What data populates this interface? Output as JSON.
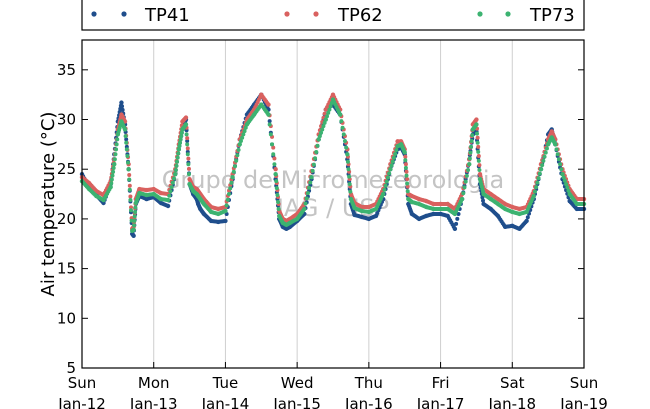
{
  "chart_data": {
    "type": "scatter",
    "ylabel": "Air temperature (°C)",
    "xlabel": "",
    "ylim": [
      5,
      38
    ],
    "xlim": [
      0,
      7
    ],
    "grid": "vertical",
    "legend_placement": "top, above plot",
    "yticks": [
      5,
      10,
      15,
      20,
      25,
      30,
      35
    ],
    "xticks": [
      {
        "x": 0,
        "day": "Sun",
        "date": "Jan-12"
      },
      {
        "x": 1,
        "day": "Mon",
        "date": "Jan-13"
      },
      {
        "x": 2,
        "day": "Tue",
        "date": "Jan-14"
      },
      {
        "x": 3,
        "day": "Wed",
        "date": "Jan-15"
      },
      {
        "x": 4,
        "day": "Thu",
        "date": "Jan-16"
      },
      {
        "x": 5,
        "day": "Fri",
        "date": "Jan-17"
      },
      {
        "x": 6,
        "day": "Sat",
        "date": "Jan-18"
      },
      {
        "x": 7,
        "day": "Sun",
        "date": "Jan-19"
      }
    ],
    "watermark": [
      "Grupo de Micrometeorologia",
      "IAG / USP"
    ],
    "x_units": "days since Jan-12 00:00",
    "series": [
      {
        "name": "TP41",
        "color": "#1f4e8c",
        "x": [
          0,
          0.1,
          0.2,
          0.3,
          0.4,
          0.45,
          0.5,
          0.55,
          0.6,
          0.65,
          0.7,
          0.72,
          0.75,
          0.8,
          0.9,
          1.0,
          1.1,
          1.2,
          1.3,
          1.35,
          1.4,
          1.45,
          1.5,
          1.55,
          1.6,
          1.62,
          1.65,
          1.7,
          1.8,
          1.9,
          2.0,
          2.1,
          2.2,
          2.3,
          2.4,
          2.5,
          2.6,
          2.7,
          2.75,
          2.8,
          2.85,
          2.9,
          3.0,
          3.1,
          3.2,
          3.3,
          3.4,
          3.5,
          3.6,
          3.7,
          3.75,
          3.8,
          3.9,
          4.0,
          4.1,
          4.2,
          4.3,
          4.4,
          4.45,
          4.5,
          4.55,
          4.6,
          4.7,
          4.8,
          4.9,
          5.0,
          5.1,
          5.2,
          5.3,
          5.4,
          5.45,
          5.5,
          5.55,
          5.6,
          5.7,
          5.8,
          5.9,
          6.0,
          6.1,
          6.2,
          6.3,
          6.4,
          6.5,
          6.55,
          6.6,
          6.7,
          6.8,
          6.9,
          7.0
        ],
        "y": [
          24.5,
          23.2,
          22.4,
          21.6,
          23.5,
          26.5,
          29.8,
          31.7,
          29.5,
          25.0,
          18.5,
          18.3,
          21.5,
          22.3,
          22.0,
          22.2,
          21.6,
          21.3,
          24.5,
          27.0,
          29.0,
          30.0,
          23.5,
          22.5,
          22.0,
          21.5,
          21.0,
          20.5,
          19.8,
          19.7,
          19.8,
          24.0,
          28.0,
          30.5,
          31.5,
          32.5,
          31.0,
          24.0,
          20.0,
          19.2,
          19.0,
          19.2,
          19.8,
          20.5,
          24.0,
          28.0,
          31.0,
          31.5,
          30.5,
          26.0,
          21.5,
          20.4,
          20.2,
          20.0,
          20.3,
          22.0,
          25.0,
          27.0,
          27.2,
          26.5,
          21.5,
          20.5,
          20.0,
          20.3,
          20.5,
          20.5,
          20.3,
          19.0,
          22.0,
          26.0,
          28.5,
          28.8,
          23.5,
          21.5,
          21.0,
          20.3,
          19.2,
          19.3,
          19.0,
          19.8,
          22.0,
          25.0,
          28.5,
          29.0,
          27.5,
          24.0,
          21.8,
          21.0,
          21.0
        ]
      },
      {
        "name": "TP62",
        "color": "#d9615f",
        "x": [
          0,
          0.1,
          0.2,
          0.3,
          0.4,
          0.45,
          0.5,
          0.55,
          0.6,
          0.65,
          0.7,
          0.72,
          0.75,
          0.8,
          0.9,
          1.0,
          1.1,
          1.2,
          1.3,
          1.35,
          1.4,
          1.45,
          1.5,
          1.55,
          1.6,
          1.62,
          1.65,
          1.7,
          1.8,
          1.9,
          2.0,
          2.1,
          2.2,
          2.3,
          2.4,
          2.5,
          2.6,
          2.7,
          2.75,
          2.8,
          2.85,
          2.9,
          3.0,
          3.1,
          3.2,
          3.3,
          3.4,
          3.5,
          3.6,
          3.7,
          3.75,
          3.8,
          3.9,
          4.0,
          4.1,
          4.2,
          4.3,
          4.4,
          4.45,
          4.5,
          4.55,
          4.6,
          4.7,
          4.8,
          4.9,
          5.0,
          5.1,
          5.2,
          5.3,
          5.4,
          5.45,
          5.5,
          5.55,
          5.6,
          5.7,
          5.8,
          5.9,
          6.0,
          6.1,
          6.2,
          6.3,
          6.4,
          6.5,
          6.55,
          6.6,
          6.7,
          6.8,
          6.9,
          7.0
        ],
        "y": [
          24.2,
          23.6,
          22.8,
          22.4,
          23.8,
          26.0,
          29.0,
          30.5,
          29.8,
          25.5,
          19.0,
          19.2,
          22.0,
          23.0,
          22.9,
          23.0,
          22.6,
          22.5,
          25.0,
          27.5,
          29.8,
          30.2,
          24.0,
          23.2,
          23.0,
          22.8,
          22.5,
          22.0,
          21.2,
          21.0,
          21.2,
          24.5,
          28.0,
          30.0,
          31.0,
          32.5,
          31.5,
          25.0,
          20.8,
          20.0,
          19.8,
          20.0,
          20.5,
          21.5,
          24.8,
          28.5,
          31.0,
          32.5,
          31.0,
          27.0,
          22.5,
          21.6,
          21.2,
          21.2,
          21.5,
          23.0,
          25.5,
          27.8,
          27.8,
          27.0,
          22.5,
          22.3,
          22.0,
          21.8,
          21.5,
          21.5,
          21.5,
          21.0,
          22.5,
          26.0,
          29.5,
          30.0,
          24.5,
          23.0,
          22.5,
          22.0,
          21.5,
          21.2,
          21.0,
          21.2,
          22.8,
          25.5,
          28.0,
          28.8,
          28.0,
          25.0,
          23.0,
          22.0,
          22.0
        ]
      },
      {
        "name": "TP73",
        "color": "#3cb371",
        "x": [
          0,
          0.1,
          0.2,
          0.3,
          0.4,
          0.45,
          0.5,
          0.55,
          0.6,
          0.65,
          0.7,
          0.72,
          0.75,
          0.8,
          0.9,
          1.0,
          1.1,
          1.2,
          1.3,
          1.35,
          1.4,
          1.45,
          1.5,
          1.55,
          1.6,
          1.62,
          1.65,
          1.7,
          1.8,
          1.9,
          2.0,
          2.1,
          2.2,
          2.3,
          2.4,
          2.5,
          2.6,
          2.7,
          2.75,
          2.8,
          2.85,
          2.9,
          3.0,
          3.1,
          3.2,
          3.3,
          3.4,
          3.5,
          3.6,
          3.7,
          3.75,
          3.8,
          3.9,
          4.0,
          4.1,
          4.2,
          4.3,
          4.4,
          4.45,
          4.5,
          4.55,
          4.6,
          4.7,
          4.8,
          4.9,
          5.0,
          5.1,
          5.2,
          5.3,
          5.4,
          5.45,
          5.5,
          5.55,
          5.6,
          5.7,
          5.8,
          5.9,
          6.0,
          6.1,
          6.2,
          6.3,
          6.4,
          6.5,
          6.55,
          6.6,
          6.7,
          6.8,
          6.9,
          7.0
        ],
        "y": [
          23.8,
          23.0,
          22.3,
          21.9,
          23.2,
          25.5,
          28.5,
          29.8,
          29.0,
          25.0,
          18.8,
          18.9,
          21.6,
          22.6,
          22.4,
          22.5,
          22.0,
          21.9,
          24.5,
          27.0,
          29.0,
          29.5,
          23.5,
          22.8,
          22.5,
          22.3,
          22.0,
          21.5,
          20.7,
          20.5,
          20.8,
          24.2,
          27.5,
          29.5,
          30.5,
          31.5,
          30.5,
          24.5,
          20.3,
          19.6,
          19.4,
          19.6,
          20.0,
          21.0,
          24.2,
          28.0,
          30.0,
          32.0,
          30.5,
          26.5,
          22.0,
          21.1,
          20.8,
          20.7,
          21.0,
          22.5,
          25.0,
          27.3,
          27.5,
          26.7,
          22.0,
          21.7,
          21.5,
          21.2,
          21.0,
          21.0,
          21.0,
          20.5,
          22.0,
          25.5,
          29.0,
          29.5,
          24.0,
          22.5,
          22.0,
          21.5,
          21.0,
          20.7,
          20.5,
          20.7,
          22.3,
          25.0,
          27.5,
          28.2,
          27.5,
          24.5,
          22.5,
          21.5,
          21.5
        ]
      }
    ]
  }
}
